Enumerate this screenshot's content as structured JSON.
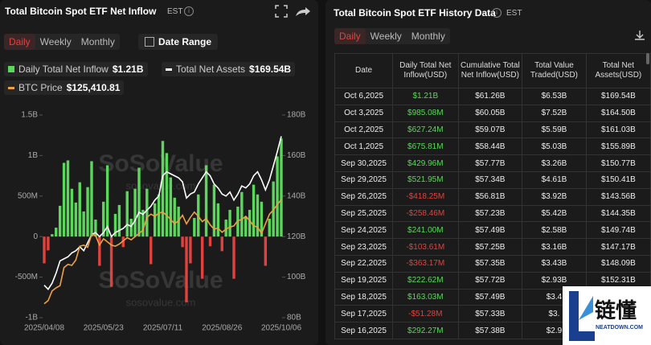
{
  "left_panel": {
    "title": "Total Bitcoin Spot ETF Net Inflow",
    "timezone": "EST",
    "tabs": [
      "Daily",
      "Weekly",
      "Monthly"
    ],
    "date_range": "Date Range"
  },
  "chart_data": {
    "type": "combo",
    "watermark": "SoSoValue",
    "watermark_url": "sosovalue.com",
    "categories": [
      "2025/04/08",
      null,
      null,
      null,
      null,
      null,
      null,
      null,
      null,
      null,
      null,
      null,
      null,
      null,
      null,
      "2025/05/23",
      null,
      null,
      null,
      null,
      null,
      null,
      null,
      null,
      null,
      null,
      null,
      null,
      null,
      null,
      "2025/07/11",
      null,
      null,
      null,
      null,
      null,
      null,
      null,
      null,
      null,
      null,
      null,
      null,
      null,
      null,
      "2025/08/26",
      null,
      null,
      null,
      null,
      null,
      null,
      null,
      null,
      null,
      null,
      null,
      null,
      null,
      null,
      "2025/10/06"
    ],
    "ylim": [
      -1,
      1.5
    ],
    "yticks": [
      {
        "value": -1,
        "label": "-1B"
      },
      {
        "value": -0.5,
        "label": "-500M"
      },
      0,
      {
        "value": 0.5,
        "label": "500M"
      },
      {
        "value": 1,
        "label": "1B"
      },
      {
        "value": 1.5,
        "label": "1.5B"
      }
    ],
    "y2lim": [
      80,
      180
    ],
    "y2ticks": [
      {
        "value": 80,
        "label": "80B"
      },
      {
        "value": 100,
        "label": "100B"
      },
      {
        "value": 120,
        "label": "120B"
      },
      {
        "value": 140,
        "label": "140B"
      },
      {
        "value": 160,
        "label": "160B"
      },
      {
        "value": 180,
        "label": "180B"
      }
    ],
    "y3lim": [
      70000,
      165000
    ],
    "series": [
      {
        "name": "Daily Total Net Inflow",
        "latest": "$1.21B",
        "type": "bar",
        "color": "#5bd75b",
        "negative_color": "#e0433f",
        "values": [
          -0.33,
          -0.17,
          0.03,
          0.11,
          0.38,
          0.91,
          0.94,
          0.59,
          0.42,
          0.67,
          0.31,
          0.61,
          0.93,
          0.21,
          -0.36,
          0.43,
          0.88,
          -0.62,
          0.28,
          0.39,
          -0.13,
          0.56,
          0.22,
          0.59,
          0.85,
          0.33,
          0.59,
          -0.34,
          0.41,
          0.52,
          1.18,
          1.03,
          0.73,
          0.48,
          0.37,
          -0.13,
          -0.81,
          -0.33,
          0.23,
          0.52,
          -0.52,
          0.88,
          -0.12,
          0.64,
          0.41,
          -0.18,
          0.21,
          0.33,
          -0.52,
          0.37,
          0.55,
          0.25,
          0.33,
          0.64,
          0.52,
          0.43,
          -0.36,
          0.22,
          0.68,
          0.99,
          1.21
        ]
      },
      {
        "name": "Total Net Assets",
        "latest": "$169.54B",
        "type": "line",
        "axis": "y2",
        "color": "#ffffff",
        "values": [
          96,
          94,
          97,
          102,
          108,
          109,
          110,
          112,
          113,
          115,
          113,
          117,
          121,
          122,
          120,
          122,
          125,
          120,
          122,
          123,
          124,
          126,
          125,
          128,
          132,
          131,
          133,
          135,
          138,
          140,
          150,
          152,
          151,
          150,
          149,
          147,
          139,
          141,
          142,
          146,
          149,
          152,
          150,
          146,
          144,
          141,
          140,
          142,
          138,
          141,
          145,
          144,
          146,
          150,
          152,
          148,
          143,
          148,
          155,
          162,
          169.54
        ]
      },
      {
        "name": "BTC Price",
        "latest": "$125,410.81",
        "type": "line",
        "axis": "y3",
        "color": "#f0a040",
        "values": [
          76500,
          78000,
          82500,
          84000,
          85000,
          93500,
          95000,
          94500,
          97000,
          103500,
          104000,
          103000,
          109000,
          108500,
          104000,
          107000,
          105500,
          104000,
          103500,
          104500,
          106000,
          107500,
          106500,
          108000,
          109500,
          111000,
          117000,
          118500,
          117500,
          119000,
          119500,
          118000,
          116000,
          114000,
          115500,
          118000,
          114000,
          117000,
          119500,
          117500,
          115000,
          116500,
          113500,
          111500,
          112000,
          110000,
          111500,
          112500,
          113000,
          115500,
          116000,
          117500,
          115500,
          113000,
          112500,
          109500,
          114000,
          118500,
          120500,
          123000,
          125410.81
        ]
      }
    ]
  },
  "right_panel": {
    "title": "Total Bitcoin Spot ETF History Data",
    "timezone": "EST",
    "tabs": [
      "Daily",
      "Weekly",
      "Monthly"
    ]
  },
  "table": {
    "headers": [
      "Date",
      "Daily Total Net Inflow(USD)",
      "Cumulative Total Net Inflow(USD)",
      "Total Value Traded(USD)",
      "Total Net Assets(USD)"
    ],
    "rows": [
      [
        "Oct 6,2025",
        "$1.21B",
        "$61.26B",
        "$6.53B",
        "$169.54B"
      ],
      [
        "Oct 3,2025",
        "$985.08M",
        "$60.05B",
        "$7.52B",
        "$164.50B"
      ],
      [
        "Oct 2,2025",
        "$627.24M",
        "$59.07B",
        "$5.59B",
        "$161.03B"
      ],
      [
        "Oct 1,2025",
        "$675.81M",
        "$58.44B",
        "$5.03B",
        "$155.89B"
      ],
      [
        "Sep 30,2025",
        "$429.96M",
        "$57.77B",
        "$3.26B",
        "$150.77B"
      ],
      [
        "Sep 29,2025",
        "$521.95M",
        "$57.34B",
        "$4.61B",
        "$150.41B"
      ],
      [
        "Sep 26,2025",
        "-$418.25M",
        "$56.81B",
        "$3.92B",
        "$143.56B"
      ],
      [
        "Sep 25,2025",
        "-$258.46M",
        "$57.23B",
        "$5.42B",
        "$144.35B"
      ],
      [
        "Sep 24,2025",
        "$241.00M",
        "$57.49B",
        "$2.58B",
        "$149.74B"
      ],
      [
        "Sep 23,2025",
        "-$103.61M",
        "$57.25B",
        "$3.16B",
        "$147.17B"
      ],
      [
        "Sep 22,2025",
        "-$363.17M",
        "$57.35B",
        "$3.43B",
        "$148.09B"
      ],
      [
        "Sep 19,2025",
        "$222.62M",
        "$57.72B",
        "$2.93B",
        "$152.31B"
      ],
      [
        "Sep 18,2025",
        "$163.03M",
        "$57.49B",
        "$3.4"
      ],
      [
        "Sep 17,2025",
        "-$51.28M",
        "$57.33B",
        "$3."
      ],
      [
        "Sep 16,2025",
        "$292.27M",
        "$57.38B",
        "$2.9"
      ]
    ]
  },
  "logo": {
    "name": "链懂",
    "url": "NEATDOWN.COM"
  }
}
